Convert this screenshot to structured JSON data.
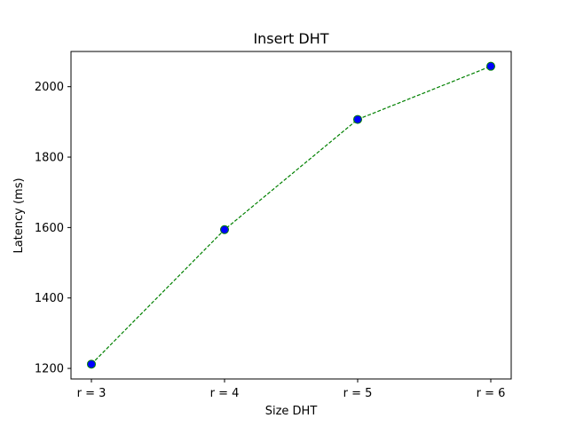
{
  "chart_data": {
    "type": "line",
    "title": "Insert DHT",
    "xlabel": "Size DHT",
    "ylabel": "Latency (ms)",
    "categories": [
      "r = 3",
      "r = 4",
      "r = 5",
      "r = 6"
    ],
    "series": [
      {
        "values": [
          1212,
          1594,
          1907,
          2058
        ]
      }
    ],
    "ylim": [
      1170,
      2100
    ],
    "yticks": [
      1200,
      1400,
      1600,
      1800,
      2000
    ],
    "grid": false,
    "line_style": "dashed",
    "colors": {
      "line": "#008000",
      "marker_fill": "#0000ff",
      "marker_edge": "#008000"
    }
  }
}
